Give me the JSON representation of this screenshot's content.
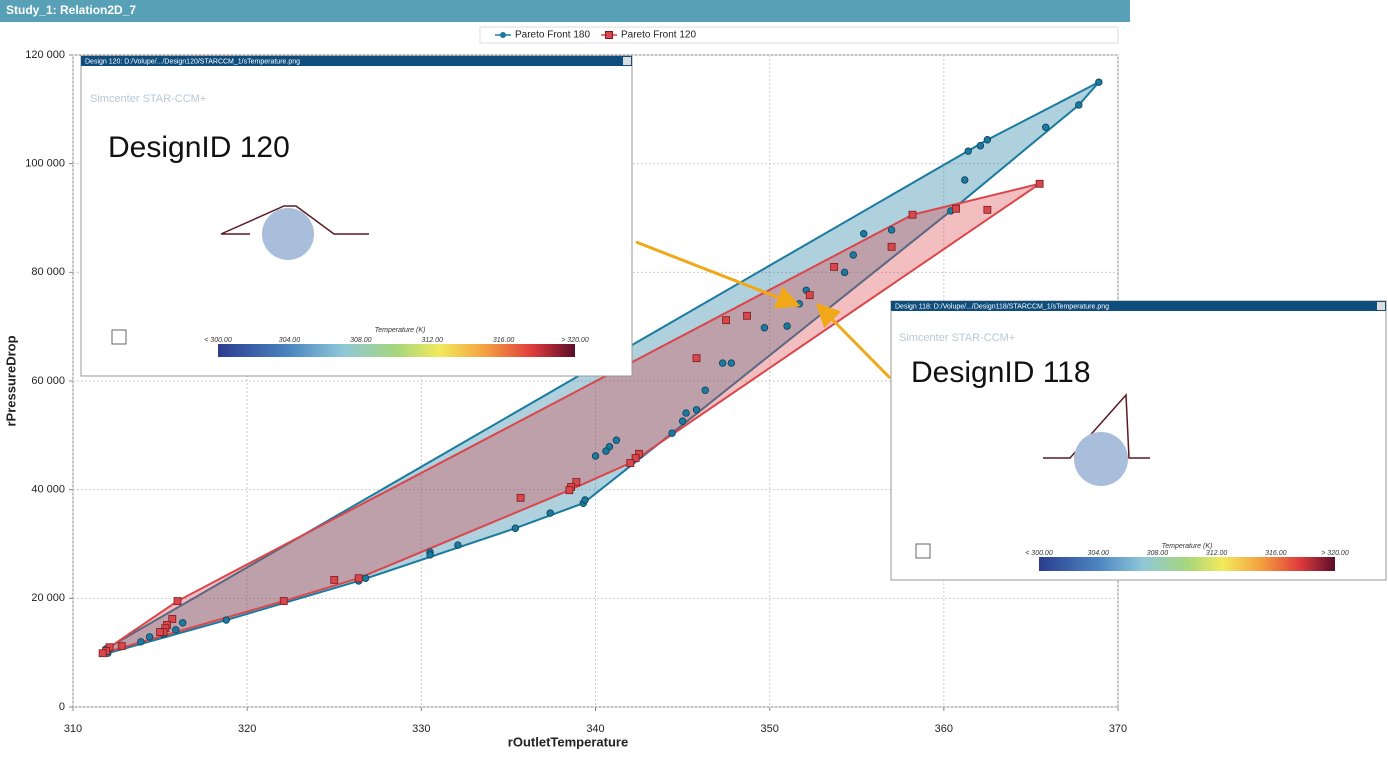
{
  "window": {
    "title": "Study_1: Relation2D_7"
  },
  "chart_data": {
    "type": "scatter",
    "xlabel": "rOutletTemperature",
    "ylabel": "rPressureDrop",
    "xlim": [
      310,
      370
    ],
    "xticks": [
      310,
      320,
      330,
      340,
      350,
      360,
      370
    ],
    "ylim": [
      0,
      120000
    ],
    "yticks": [
      {
        "value": 0,
        "label": "0"
      },
      {
        "value": 20000,
        "label": "20 000"
      },
      {
        "value": 40000,
        "label": "40 000"
      },
      {
        "value": 60000,
        "label": "60 000"
      },
      {
        "value": 80000,
        "label": "80 000"
      },
      {
        "value": 100000,
        "label": "100 000"
      },
      {
        "value": 120000,
        "label": "120 000"
      }
    ],
    "grid": true,
    "series": [
      {
        "name": "Pareto Front 180",
        "color": "#1a7aa0",
        "marker": "circle",
        "x": [
          368.9,
          367.75,
          365.85,
          362.5,
          362.1,
          361.4,
          361.2,
          360.4,
          357.0,
          355.4,
          354.8,
          354.3,
          352.1,
          351.7,
          351.0,
          349.7,
          347.3,
          347.8,
          346.3,
          345.8,
          345.2,
          345.0,
          344.4,
          341.2,
          340.8,
          340.6,
          340.0,
          339.3,
          339.4,
          337.4,
          335.4,
          332.1,
          330.5,
          330.5,
          326.8,
          326.4,
          318.8,
          316.3,
          315.9,
          315.2,
          314.4,
          313.9,
          311.9,
          312.0
        ],
        "values": [
          115000,
          110800,
          106700,
          104400,
          103300,
          102300,
          97000,
          91300,
          87800,
          87100,
          83200,
          80000,
          76700,
          74200,
          70100,
          69800,
          63300,
          63300,
          58300,
          54700,
          54100,
          52600,
          50400,
          49100,
          47900,
          47100,
          46200,
          37500,
          38100,
          35700,
          32900,
          29800,
          28500,
          28000,
          23700,
          23200,
          16000,
          15500,
          14200,
          13400,
          12900,
          12000,
          10700,
          9900
        ]
      },
      {
        "name": "Pareto Front 120",
        "color": "#d9464b",
        "marker": "square",
        "x": [
          365.5,
          362.5,
          360.7,
          358.2,
          357.0,
          353.7,
          352.3,
          348.7,
          347.5,
          345.8,
          342.5,
          342.3,
          342.0,
          338.9,
          338.6,
          338.5,
          335.7,
          326.4,
          325.0,
          322.1,
          316.0,
          315.7,
          315.4,
          315.3,
          315.2,
          315.0,
          312.8,
          312.1,
          311.9,
          311.7
        ],
        "values": [
          96300,
          91500,
          91700,
          90600,
          84700,
          81000,
          75800,
          72000,
          71200,
          64200,
          46600,
          45800,
          44900,
          41400,
          40500,
          39900,
          38500,
          23700,
          23400,
          19500,
          19500,
          16200,
          15100,
          14500,
          13800,
          13800,
          11200,
          11000,
          10300,
          9900
        ]
      }
    ]
  },
  "popups": [
    {
      "title": "Design 120: D:/Volupe/.../Design120/STARCCM_1/sTemperature.png",
      "brand": "Simcenter STAR-CCM+",
      "heading": "DesignID 120",
      "colorbar": {
        "title": "Temperature (K)",
        "labels": [
          "< 300.00",
          "304.00",
          "308.00",
          "312.00",
          "316.00",
          "> 320.00"
        ]
      }
    },
    {
      "title": "Design 118: D:/Volupe/.../Design118/STARCCM_1/sTemperature.png",
      "brand": "Simcenter STAR-CCM+",
      "heading": "DesignID 118",
      "colorbar": {
        "title": "Temperature (K)",
        "labels": [
          "< 300.00",
          "304.00",
          "308.00",
          "312.00",
          "316.00",
          "> 320.00"
        ]
      }
    }
  ]
}
